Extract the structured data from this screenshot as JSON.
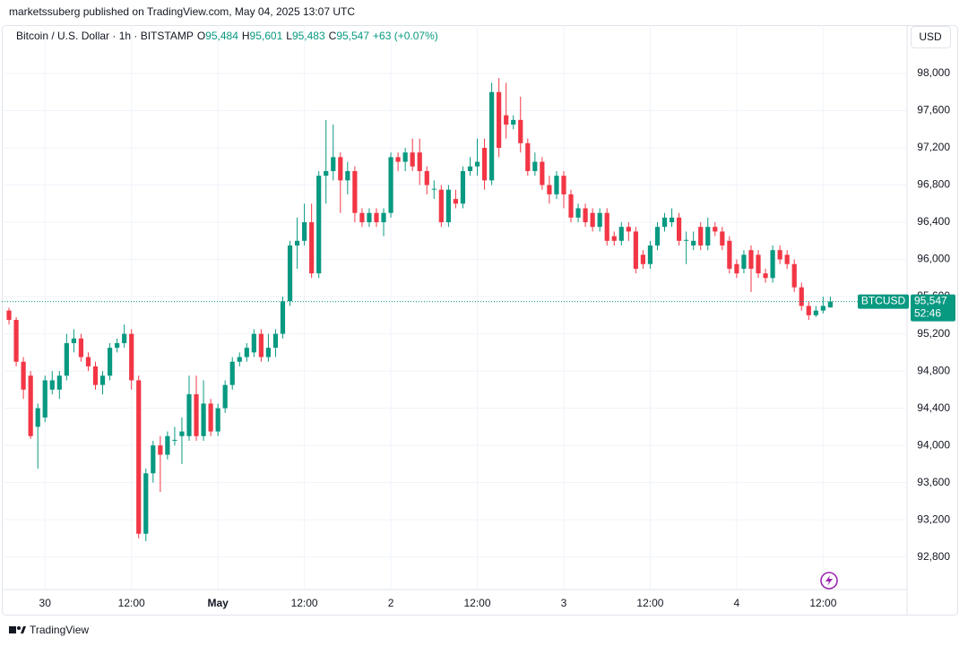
{
  "header": {
    "publisher": "marketssuberg published on TradingView.com, May 04, 2025 13:07 UTC",
    "symbol": "Bitcoin / U.S. Dollar · 1h · BITSTAMP",
    "ohlc": [
      {
        "label": "O",
        "value": "95,484"
      },
      {
        "label": "H",
        "value": "95,601"
      },
      {
        "label": "L",
        "value": "95,483"
      },
      {
        "label": "C",
        "value": "95,547"
      }
    ],
    "change": "+63 (+0.07%)"
  },
  "currency_button": "USD",
  "footer": "TradingView",
  "chart_data": {
    "type": "candlestick",
    "series": [
      {
        "name": "BTCUSD",
        "up_color": "#089981",
        "down_color": "#f23645",
        "open": [
          95450,
          95350,
          94900,
          94750,
          94200,
          94300,
          94600,
          94600,
          94750,
          95100,
          95150,
          94950,
          94850,
          94650,
          94750,
          95050,
          95100,
          95200,
          94700,
          93050,
          93700,
          94000,
          93900,
          94050,
          94100,
          94100,
          94550,
          94100,
          94450,
          94150,
          94400,
          94650,
          94900,
          94950,
          95000,
          95200,
          94950,
          95050,
          95200,
          95550,
          96150,
          96200,
          96400,
          95850,
          96900,
          96950,
          97100,
          96850,
          96950,
          96500,
          96400,
          96500,
          96400,
          96500,
          97100,
          97050,
          97150,
          97150,
          96950,
          96750,
          96750,
          96400,
          96650,
          96600,
          96950,
          97000,
          97200,
          96850,
          97800,
          97550,
          97450,
          97500,
          97250,
          96950,
          97050,
          96800,
          96700,
          96900,
          96700,
          96450,
          96550,
          96500,
          96350,
          96500,
          96250,
          96200,
          96350,
          96300,
          96050,
          95950,
          96150,
          96350,
          96400,
          96450,
          96200,
          96150,
          96350,
          96150,
          96350,
          96300,
          96200,
          95950,
          95900,
          96100,
          96050,
          95850,
          95800,
          96100,
          96050,
          95950,
          95700,
          95500,
          95400,
          95450,
          95484
        ],
        "high": [
          95480,
          95380,
          94950,
          94800,
          94450,
          94750,
          94800,
          94800,
          95200,
          95250,
          95200,
          95000,
          94900,
          94800,
          95100,
          95150,
          95300,
          95250,
          94750,
          93750,
          94050,
          94100,
          94150,
          94200,
          94300,
          94750,
          94750,
          94700,
          94500,
          94450,
          94700,
          94950,
          95000,
          95100,
          95250,
          95250,
          95200,
          95250,
          95600,
          96200,
          96450,
          96600,
          96600,
          96950,
          97500,
          97450,
          97150,
          97050,
          97000,
          96550,
          96550,
          96550,
          96550,
          97150,
          97150,
          97200,
          97300,
          97300,
          97000,
          96850,
          96800,
          96800,
          96750,
          97000,
          97100,
          97300,
          97300,
          97900,
          97950,
          97900,
          97550,
          97750,
          97300,
          97150,
          97100,
          96900,
          96950,
          96950,
          96750,
          96600,
          96600,
          96550,
          96550,
          96550,
          96300,
          96400,
          96400,
          96350,
          96100,
          96200,
          96400,
          96500,
          96550,
          96500,
          96300,
          96300,
          96400,
          96450,
          96400,
          96350,
          96250,
          96000,
          96100,
          96150,
          96100,
          95900,
          96150,
          96150,
          96100,
          96000,
          95750,
          95550,
          95500,
          95600,
          95601
        ],
        "low": [
          95300,
          94850,
          94500,
          94070,
          93750,
          94250,
          94550,
          94500,
          94700,
          95000,
          94900,
          94800,
          94600,
          94550,
          94700,
          95000,
          95050,
          94600,
          93000,
          92970,
          93600,
          93500,
          93850,
          94000,
          93800,
          94050,
          94050,
          94050,
          94100,
          94100,
          94350,
          94600,
          94850,
          94900,
          94950,
          94900,
          94900,
          94950,
          95150,
          95500,
          95900,
          96150,
          95800,
          95800,
          96600,
          96850,
          96500,
          96700,
          96400,
          96350,
          96350,
          96350,
          96250,
          96450,
          96950,
          96950,
          96950,
          96800,
          96700,
          96650,
          96350,
          96350,
          96550,
          96550,
          96900,
          96900,
          96750,
          96800,
          97100,
          97300,
          97400,
          97150,
          96900,
          96900,
          96750,
          96600,
          96650,
          96550,
          96400,
          96400,
          96350,
          96300,
          96300,
          96150,
          96150,
          96150,
          96200,
          95850,
          95900,
          95900,
          96100,
          96300,
          96350,
          96150,
          95950,
          96100,
          96100,
          96100,
          96250,
          96100,
          95850,
          95800,
          95850,
          95650,
          95800,
          95750,
          95750,
          95950,
          95900,
          95650,
          95450,
          95350,
          95380,
          95420,
          95483
        ],
        "close": [
          95350,
          94900,
          94600,
          94100,
          94400,
          94700,
          94700,
          94750,
          95100,
          95150,
          94950,
          94850,
          94650,
          94750,
          95050,
          95100,
          95200,
          94700,
          93050,
          93700,
          94000,
          93900,
          94100,
          94060,
          94150,
          94550,
          94100,
          94450,
          94150,
          94400,
          94650,
          94900,
          94950,
          95050,
          95200,
          94950,
          95050,
          95200,
          95550,
          96150,
          96200,
          96400,
          95850,
          96900,
          96950,
          97100,
          96850,
          96950,
          96500,
          96400,
          96500,
          96400,
          96500,
          97100,
          97050,
          97150,
          97000,
          96950,
          96800,
          96760,
          96400,
          96750,
          96600,
          96950,
          97000,
          97050,
          96850,
          97800,
          97200,
          97450,
          97500,
          97250,
          96950,
          97050,
          96800,
          96700,
          96900,
          96700,
          96450,
          96550,
          96400,
          96350,
          96500,
          96200,
          96200,
          96350,
          96300,
          95900,
          95950,
          96150,
          96350,
          96450,
          96450,
          96200,
          96210,
          96200,
          96150,
          96350,
          96300,
          96150,
          95900,
          95850,
          96050,
          95900,
          95850,
          95800,
          96100,
          96000,
          95950,
          95700,
          95500,
          95400,
          95450,
          95500,
          95547
        ]
      }
    ],
    "xlim": [
      -1,
      124.4
    ],
    "xticks": [
      {
        "value": 5,
        "label": "30"
      },
      {
        "value": 17,
        "label": "12:00"
      },
      {
        "value": 29,
        "label": "May"
      },
      {
        "value": 41,
        "label": "12:00"
      },
      {
        "value": 53,
        "label": "2"
      },
      {
        "value": 65,
        "label": "12:00"
      },
      {
        "value": 77,
        "label": "3"
      },
      {
        "value": 89,
        "label": "12:00"
      },
      {
        "value": 101,
        "label": "4"
      },
      {
        "value": 113,
        "label": "12:00"
      }
    ],
    "ylim": [
      92450,
      98520
    ],
    "yticks": [
      {
        "value": 92800,
        "label": "92,800"
      },
      {
        "value": 93200,
        "label": "93,200"
      },
      {
        "value": 93600,
        "label": "93,600"
      },
      {
        "value": 94000,
        "label": "94,000"
      },
      {
        "value": 94400,
        "label": "94,400"
      },
      {
        "value": 94800,
        "label": "94,800"
      },
      {
        "value": 95200,
        "label": "95,200"
      },
      {
        "value": 95600,
        "label": "95,600"
      },
      {
        "value": 96000,
        "label": "96,000"
      },
      {
        "value": 96400,
        "label": "96,400"
      },
      {
        "value": 96800,
        "label": "96,800"
      },
      {
        "value": 97200,
        "label": "97,200"
      },
      {
        "value": 97600,
        "label": "97,600"
      },
      {
        "value": 98000,
        "label": "98,000"
      }
    ],
    "grid": true,
    "last_price": {
      "value": 95547,
      "label": "95,547"
    },
    "countdown": "52:46"
  }
}
